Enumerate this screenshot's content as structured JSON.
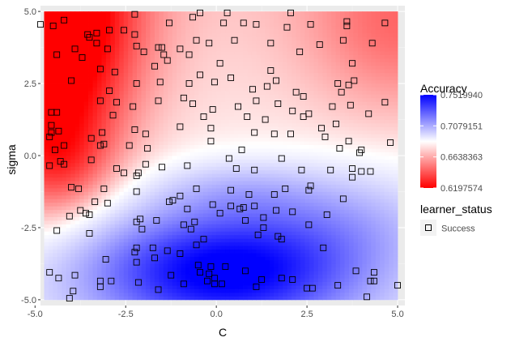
{
  "chart_data": {
    "type": "heatmap",
    "subtype": "tile-heatmap-with-scatter-overlay",
    "xlabel": "C",
    "ylabel": "sigma",
    "xlim": [
      -4.85,
      5.2
    ],
    "ylim": [
      -5.2,
      5.2
    ],
    "x_ticks": [
      {
        "value": -5.0,
        "label": "-5.0"
      },
      {
        "value": -2.5,
        "label": "-2.5"
      },
      {
        "value": 0.0,
        "label": "0.0"
      },
      {
        "value": 2.5,
        "label": "2.5"
      },
      {
        "value": 5.0,
        "label": "5.0"
      }
    ],
    "y_ticks": [
      {
        "value": -5.0,
        "label": "-5.0"
      },
      {
        "value": -2.5,
        "label": "-2.5"
      },
      {
        "value": 0.0,
        "label": "0.0"
      },
      {
        "value": 2.5,
        "label": "2.5"
      },
      {
        "value": 5.0,
        "label": "5.0"
      }
    ],
    "grid": true,
    "background": "#ebebeb",
    "fill_extent": {
      "x": [
        -4.75,
        5.0
      ],
      "y": [
        -5.0,
        5.0
      ]
    },
    "color_legend": {
      "title": "Accuracy",
      "position": "right",
      "low": 0.6197574,
      "mid": 0.6638363,
      "high": 0.751994,
      "low_color": "#ff0000",
      "mid_color": "#ffffff",
      "high_color": "#0000ff",
      "ticks": [
        {
          "value": 0.751994,
          "label": "0.7519940"
        },
        {
          "value": 0.7079151,
          "label": "0.7079151"
        },
        {
          "value": 0.6638363,
          "label": "0.6638363"
        },
        {
          "value": 0.6197574,
          "label": "0.6197574"
        }
      ]
    },
    "shape_legend": {
      "title": "learner_status",
      "entries": [
        {
          "label": "Success",
          "shape": "open-square"
        }
      ]
    },
    "points_status": "Success",
    "points": [
      [
        -4.2,
        4.7
      ],
      [
        -4.5,
        4.5
      ],
      [
        -3.55,
        4.2
      ],
      [
        -3.3,
        4.25
      ],
      [
        -2.95,
        4.35
      ],
      [
        -2.55,
        4.35
      ],
      [
        -2.25,
        4.2
      ],
      [
        -2.25,
        4.9
      ],
      [
        -1.3,
        4.6
      ],
      [
        -0.65,
        4.8
      ],
      [
        -0.45,
        4.95
      ],
      [
        0.2,
        4.6
      ],
      [
        0.3,
        4.95
      ],
      [
        0.75,
        4.6
      ],
      [
        1.1,
        4.55
      ],
      [
        1.95,
        4.45
      ],
      [
        2.05,
        4.95
      ],
      [
        2.6,
        4.55
      ],
      [
        3.6,
        4.5
      ],
      [
        3.6,
        4.65
      ],
      [
        4.65,
        4.6
      ],
      [
        -4.85,
        4.55
      ],
      [
        -3.5,
        4.1
      ],
      [
        -3.3,
        3.9
      ],
      [
        -3.0,
        3.7
      ],
      [
        -2.2,
        3.8
      ],
      [
        -1.6,
        3.75
      ],
      [
        -1.5,
        3.75
      ],
      [
        -1.45,
        3.5
      ],
      [
        -1.0,
        3.7
      ],
      [
        -0.55,
        4.0
      ],
      [
        -0.2,
        3.9
      ],
      [
        0.5,
        4.0
      ],
      [
        1.5,
        3.9
      ],
      [
        2.3,
        3.6
      ],
      [
        2.85,
        3.85
      ],
      [
        3.5,
        4.0
      ],
      [
        4.3,
        3.9
      ],
      [
        -3.9,
        3.7
      ],
      [
        -2.0,
        3.6
      ],
      [
        -1.7,
        3.1
      ],
      [
        -0.75,
        3.5
      ],
      [
        0.1,
        3.2
      ],
      [
        1.5,
        2.95
      ],
      [
        3.75,
        3.2
      ],
      [
        -1.35,
        3.3
      ],
      [
        -3.7,
        3.4
      ],
      [
        -4.4,
        3.5
      ],
      [
        -3.2,
        3.0
      ],
      [
        -4.0,
        2.6
      ],
      [
        -2.8,
        2.9
      ],
      [
        -2.2,
        2.5
      ],
      [
        -1.55,
        2.55
      ],
      [
        -0.45,
        2.8
      ],
      [
        -0.05,
        2.55
      ],
      [
        0.4,
        2.7
      ],
      [
        1.0,
        2.3
      ],
      [
        1.4,
        2.4
      ],
      [
        1.65,
        2.6
      ],
      [
        2.2,
        2.2
      ],
      [
        3.35,
        2.5
      ],
      [
        3.65,
        2.45
      ],
      [
        3.8,
        2.6
      ],
      [
        -0.75,
        2.5
      ],
      [
        -3.2,
        1.9
      ],
      [
        -2.95,
        2.25
      ],
      [
        -2.75,
        1.85
      ],
      [
        -2.3,
        1.7
      ],
      [
        -1.6,
        1.9
      ],
      [
        -0.9,
        2.0
      ],
      [
        -0.65,
        1.8
      ],
      [
        -0.1,
        1.6
      ],
      [
        0.6,
        1.7
      ],
      [
        1.1,
        1.9
      ],
      [
        1.7,
        1.8
      ],
      [
        2.4,
        2.05
      ],
      [
        2.55,
        1.45
      ],
      [
        3.2,
        1.7
      ],
      [
        3.45,
        2.2
      ],
      [
        3.7,
        1.75
      ],
      [
        4.65,
        1.85
      ],
      [
        4.2,
        1.45
      ],
      [
        -4.55,
        1.5
      ],
      [
        -4.4,
        1.5
      ],
      [
        -4.55,
        1.05
      ],
      [
        -4.35,
        0.85
      ],
      [
        -4.55,
        0.8
      ],
      [
        -2.85,
        1.4
      ],
      [
        -2.25,
        0.9
      ],
      [
        -1.0,
        1.0
      ],
      [
        -0.35,
        1.35
      ],
      [
        0.85,
        1.35
      ],
      [
        1.35,
        1.25
      ],
      [
        2.1,
        1.55
      ],
      [
        2.4,
        1.35
      ],
      [
        2.9,
        0.95
      ],
      [
        3.3,
        1.1
      ],
      [
        -4.6,
        0.65
      ],
      [
        -4.2,
        0.35
      ],
      [
        -3.45,
        0.6
      ],
      [
        -3.15,
        0.8
      ],
      [
        -3.1,
        0.4
      ],
      [
        -2.4,
        0.35
      ],
      [
        -1.95,
        0.75
      ],
      [
        -0.15,
        0.95
      ],
      [
        1.05,
        0.8
      ],
      [
        1.6,
        0.75
      ],
      [
        2.05,
        0.75
      ],
      [
        3.0,
        0.65
      ],
      [
        3.65,
        0.5
      ],
      [
        4.0,
        0.2
      ],
      [
        4.8,
        0.45
      ],
      [
        -0.15,
        0.5
      ],
      [
        -4.45,
        0.2
      ],
      [
        -3.2,
        0.35
      ],
      [
        -1.9,
        0.25
      ],
      [
        0.7,
        0.2
      ],
      [
        3.95,
        0.1
      ],
      [
        3.4,
        0.25
      ],
      [
        1.8,
        -0.1
      ],
      [
        -4.6,
        -0.35
      ],
      [
        -4.3,
        -0.2
      ],
      [
        -4.2,
        -0.3
      ],
      [
        -3.45,
        -0.15
      ],
      [
        -2.75,
        -0.45
      ],
      [
        -2.55,
        -0.6
      ],
      [
        -2.15,
        -0.6
      ],
      [
        -1.5,
        -0.4
      ],
      [
        -0.8,
        -0.35
      ],
      [
        0.55,
        -0.45
      ],
      [
        0.35,
        -0.1
      ],
      [
        1.05,
        -0.5
      ],
      [
        2.35,
        -0.5
      ],
      [
        3.15,
        -0.5
      ],
      [
        3.75,
        -0.45
      ],
      [
        3.75,
        -0.75
      ],
      [
        4.0,
        -0.55
      ],
      [
        4.25,
        -0.55
      ],
      [
        -1.95,
        -0.3
      ],
      [
        -3.8,
        -1.15
      ],
      [
        -4.0,
        -1.1
      ],
      [
        -3.1,
        -1.15
      ],
      [
        -2.2,
        -0.7
      ],
      [
        -2.2,
        -1.25
      ],
      [
        -1.3,
        -1.6
      ],
      [
        -1.0,
        -1.4
      ],
      [
        -0.55,
        -1.15
      ],
      [
        0.4,
        -1.2
      ],
      [
        0.9,
        -1.35
      ],
      [
        1.6,
        -1.35
      ],
      [
        1.9,
        -1.15
      ],
      [
        2.6,
        -1.05
      ],
      [
        2.55,
        -1.2
      ],
      [
        3.5,
        -1.5
      ],
      [
        -3.35,
        -1.6
      ],
      [
        -3.75,
        -1.9
      ],
      [
        -3.5,
        -2.05
      ],
      [
        -3.0,
        -1.65
      ],
      [
        -1.2,
        -1.55
      ],
      [
        -0.8,
        -1.85
      ],
      [
        -0.1,
        -1.7
      ],
      [
        0.1,
        -2.0
      ],
      [
        0.4,
        -1.75
      ],
      [
        0.65,
        -1.85
      ],
      [
        0.75,
        -1.8
      ],
      [
        1.05,
        -1.75
      ],
      [
        1.3,
        -2.15
      ],
      [
        1.65,
        -1.9
      ],
      [
        2.1,
        -1.95
      ],
      [
        2.55,
        -2.4
      ],
      [
        3.05,
        -2.05
      ],
      [
        -4.05,
        -2.1
      ],
      [
        -3.6,
        -2.0
      ],
      [
        -3.5,
        -2.7
      ],
      [
        -2.1,
        -2.2
      ],
      [
        -2.2,
        -2.3
      ],
      [
        -1.65,
        -2.25
      ],
      [
        -0.9,
        -2.4
      ],
      [
        -0.6,
        -2.3
      ],
      [
        0.8,
        -2.25
      ],
      [
        1.3,
        -2.5
      ],
      [
        -4.4,
        -2.6
      ],
      [
        -2.05,
        -2.55
      ],
      [
        1.15,
        -2.75
      ],
      [
        1.7,
        -2.8
      ],
      [
        1.8,
        -2.9
      ],
      [
        -0.35,
        -2.9
      ],
      [
        -0.7,
        -2.55
      ],
      [
        -2.2,
        -3.2
      ],
      [
        -2.25,
        -3.35
      ],
      [
        -1.75,
        -3.2
      ],
      [
        -1.35,
        -3.3
      ],
      [
        -0.55,
        -3.1
      ],
      [
        -1.0,
        -3.4
      ],
      [
        2.95,
        -3.2
      ],
      [
        -1.7,
        -3.55
      ],
      [
        -2.2,
        -3.7
      ],
      [
        -3.05,
        -3.6
      ],
      [
        -4.6,
        -4.05
      ],
      [
        -4.35,
        -4.25
      ],
      [
        -3.9,
        -4.15
      ],
      [
        -3.2,
        -4.35
      ],
      [
        -2.9,
        -4.35
      ],
      [
        -1.25,
        -4.15
      ],
      [
        -0.5,
        -3.8
      ],
      [
        -0.15,
        -3.85
      ],
      [
        -0.45,
        -4.05
      ],
      [
        -0.2,
        -4.1
      ],
      [
        -0.05,
        -4.25
      ],
      [
        0.25,
        -3.85
      ],
      [
        0.8,
        -4.0
      ],
      [
        1.25,
        -4.3
      ],
      [
        1.8,
        -4.25
      ],
      [
        2.1,
        -4.3
      ],
      [
        3.85,
        -4.0
      ],
      [
        4.35,
        -4.05
      ],
      [
        4.25,
        -4.35
      ],
      [
        4.35,
        -4.35
      ],
      [
        -3.95,
        -4.7
      ],
      [
        -4.05,
        -4.95
      ],
      [
        -3.2,
        -4.55
      ],
      [
        -1.6,
        -4.65
      ],
      [
        -0.9,
        -4.45
      ],
      [
        -0.25,
        -4.35
      ],
      [
        -0.05,
        -4.45
      ],
      [
        0.15,
        -4.45
      ],
      [
        1.1,
        -4.55
      ],
      [
        2.5,
        -4.6
      ],
      [
        2.65,
        -4.6
      ],
      [
        3.35,
        -4.5
      ],
      [
        4.15,
        -4.9
      ],
      [
        5.0,
        -4.5
      ],
      [
        -2.15,
        -4.4
      ]
    ]
  }
}
